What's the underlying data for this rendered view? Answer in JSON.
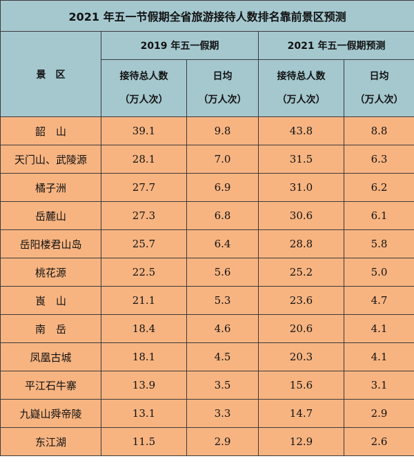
{
  "title": "2021 年五一节假期全省旅游接待人数排名靠前景区预测",
  "headers": {
    "scenic": "景　区",
    "group_2019": "2019 年五一假期",
    "group_2021": "2021 年五一假期预测",
    "total_line1": "接待总人数",
    "total_line2": "（万人次）",
    "daily_line1": "日均",
    "daily_line2": "（万人次）"
  },
  "rows": [
    {
      "name": "韶　山",
      "t2019": "39.1",
      "d2019": "9.8",
      "t2021": "43.8",
      "d2021": "8.8"
    },
    {
      "name": "天门山、武陵源",
      "t2019": "28.1",
      "d2019": "7.0",
      "t2021": "31.5",
      "d2021": "6.3"
    },
    {
      "name": "橘子洲",
      "t2019": "27.7",
      "d2019": "6.9",
      "t2021": "31.0",
      "d2021": "6.2"
    },
    {
      "name": "岳麓山",
      "t2019": "27.3",
      "d2019": "6.8",
      "t2021": "30.6",
      "d2021": "6.1"
    },
    {
      "name": "岳阳楼君山岛",
      "t2019": "25.7",
      "d2019": "6.4",
      "t2021": "28.8",
      "d2021": "5.8"
    },
    {
      "name": "桃花源",
      "t2019": "22.5",
      "d2019": "5.6",
      "t2021": "25.2",
      "d2021": "5.0"
    },
    {
      "name": "崀　山",
      "t2019": "21.1",
      "d2019": "5.3",
      "t2021": "23.6",
      "d2021": "4.7"
    },
    {
      "name": "南　岳",
      "t2019": "18.4",
      "d2019": "4.6",
      "t2021": "20.6",
      "d2021": "4.1"
    },
    {
      "name": "凤凰古城",
      "t2019": "18.1",
      "d2019": "4.5",
      "t2021": "20.3",
      "d2021": "4.1"
    },
    {
      "name": "平江石牛寨",
      "t2019": "13.9",
      "d2019": "3.5",
      "t2021": "15.6",
      "d2021": "3.1"
    },
    {
      "name": "九嶷山舜帝陵",
      "t2019": "13.1",
      "d2019": "3.3",
      "t2021": "14.7",
      "d2021": "2.9"
    },
    {
      "name": "东江湖",
      "t2019": "11.5",
      "d2019": "2.9",
      "t2021": "12.9",
      "d2021": "2.6"
    }
  ]
}
